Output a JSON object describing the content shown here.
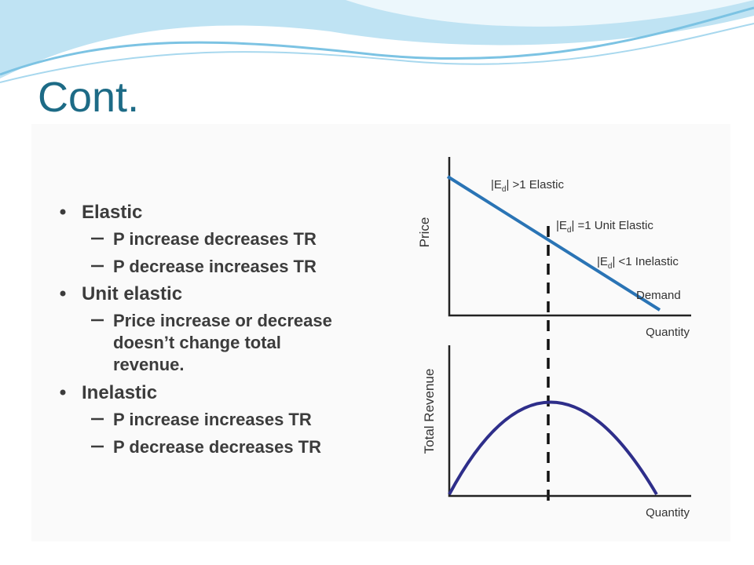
{
  "title": "Cont.",
  "bullets": [
    {
      "text": "Elastic",
      "items": [
        [
          "P increase decreases TR"
        ],
        [
          "P decrease increases TR"
        ]
      ]
    },
    {
      "text": "Unit elastic",
      "items": [
        [
          "Price increase or decrease",
          "doesn’t change total",
          "revenue."
        ]
      ]
    },
    {
      "text": "Inelastic",
      "items": [
        [
          "P increase increases TR"
        ],
        [
          "P decrease decreases TR"
        ]
      ]
    }
  ],
  "diagram": {
    "top_axis_label": "Price",
    "top_x_label": "Quantity",
    "bottom_axis_label": "Total Revenue",
    "bottom_x_label": "Quantity",
    "annotations": [
      {
        "pre": "|E",
        "sub": "d",
        "post": "| >1 Elastic"
      },
      {
        "pre": "|E",
        "sub": "d",
        "post": "| =1 Unit Elastic"
      },
      {
        "pre": "|E",
        "sub": "d",
        "post": "| <1 Inelastic"
      }
    ],
    "curve_label": "Demand"
  }
}
